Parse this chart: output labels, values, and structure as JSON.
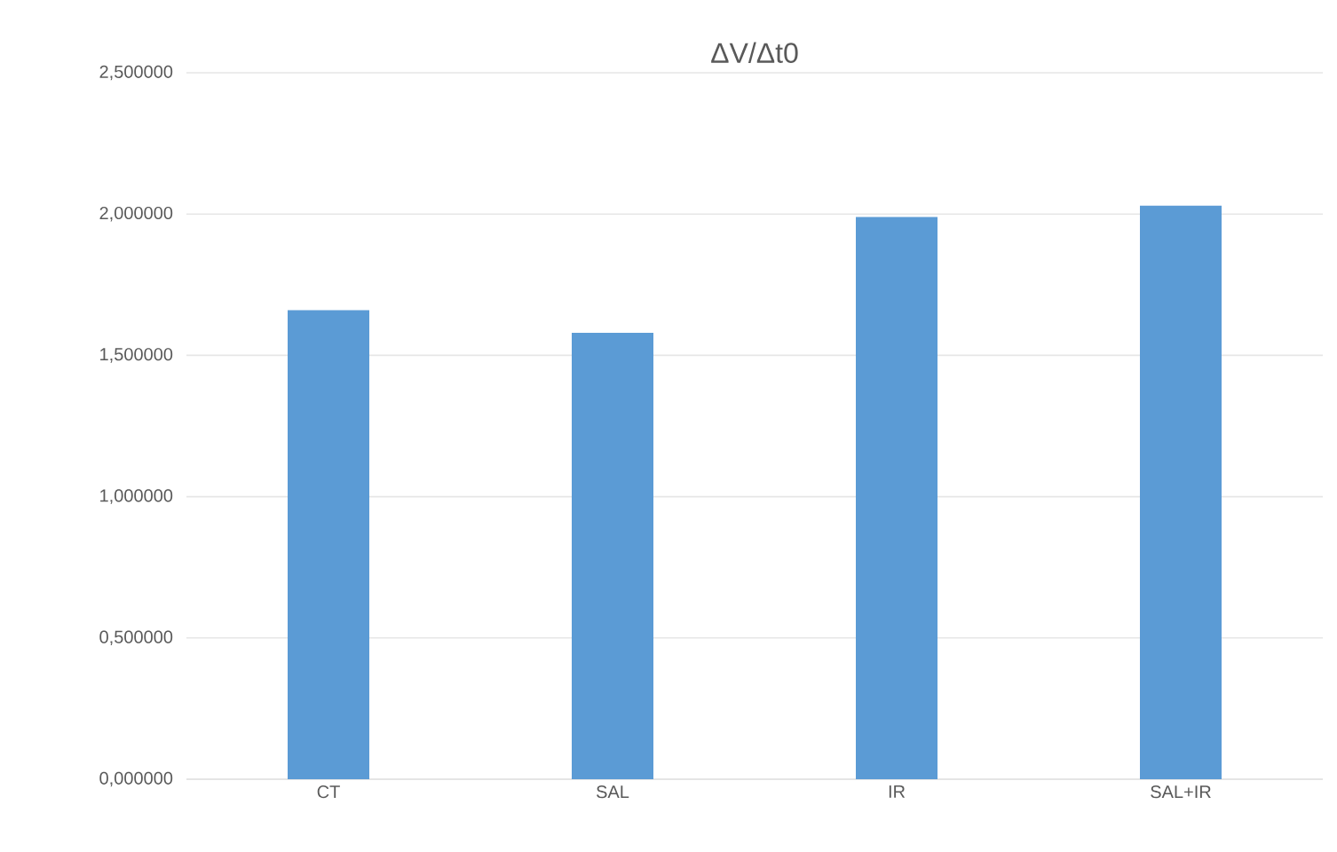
{
  "chart_data": {
    "type": "bar",
    "title": "ΔV/Δt0",
    "categories": [
      "CT",
      "SAL",
      "IR",
      "SAL+IR"
    ],
    "values": [
      1.66,
      1.58,
      1.99,
      2.03
    ],
    "color": "#5b9bd5",
    "ylim": [
      0,
      2.5
    ],
    "yticks": [
      {
        "value": 0,
        "label": "0,000000"
      },
      {
        "value": 0.5,
        "label": "0,500000"
      },
      {
        "value": 1,
        "label": "1,000000"
      },
      {
        "value": 1.5,
        "label": "1,500000"
      },
      {
        "value": 2,
        "label": "2,000000"
      },
      {
        "value": 2.5,
        "label": "2,500000"
      }
    ],
    "grid": "y"
  }
}
